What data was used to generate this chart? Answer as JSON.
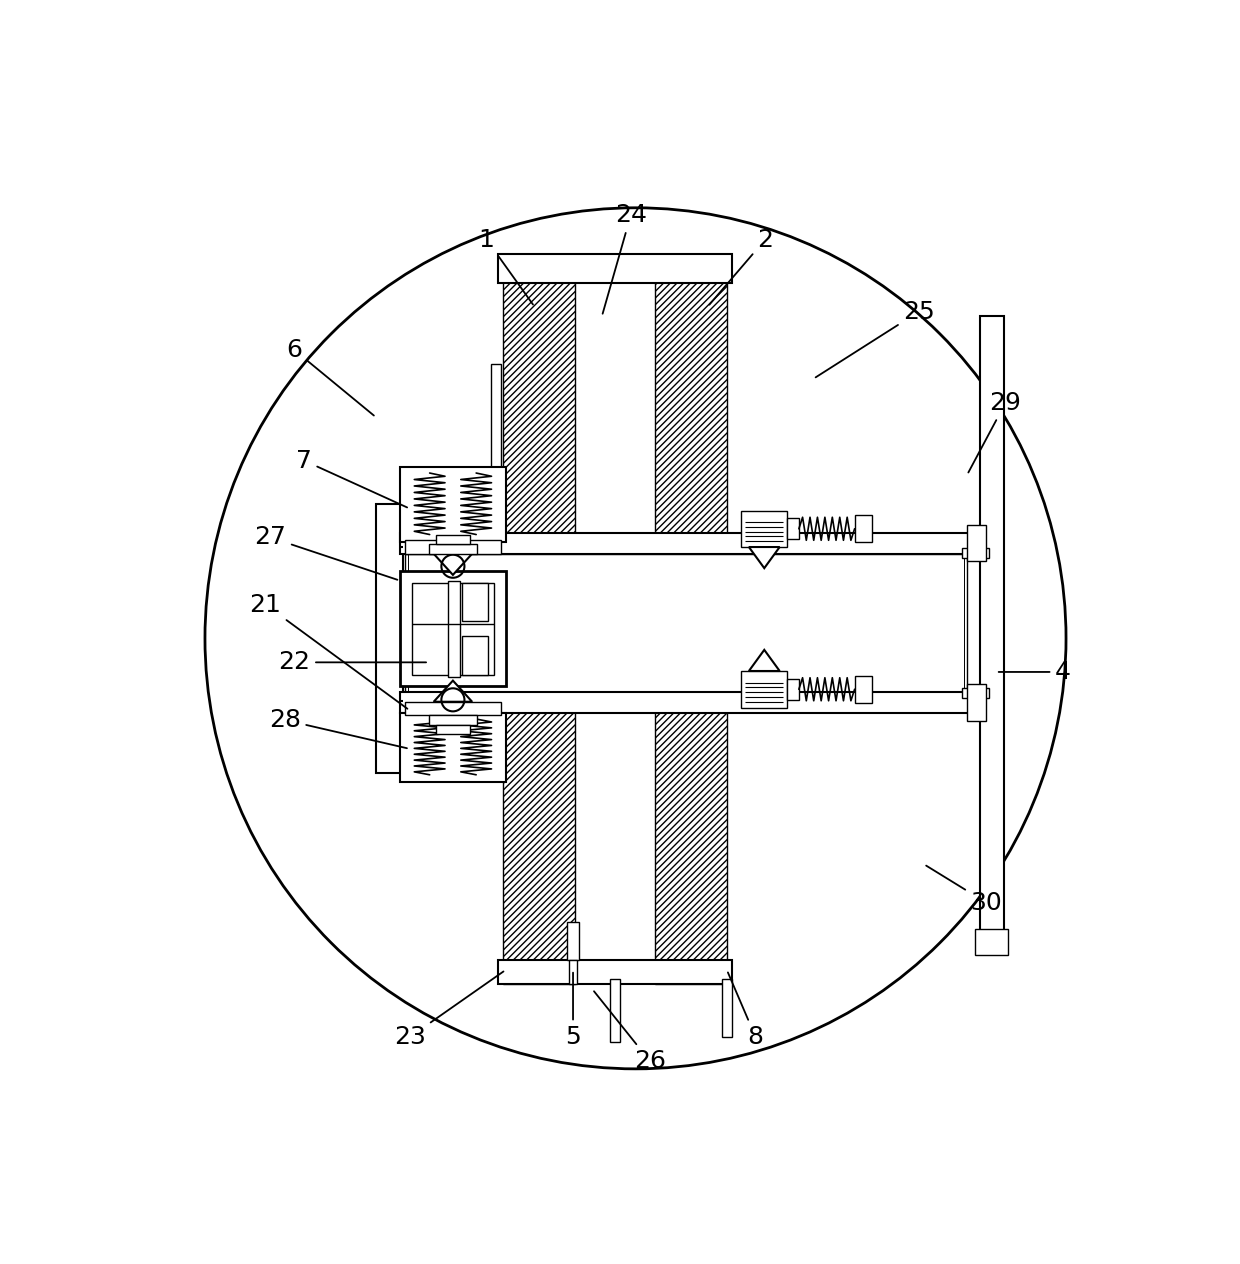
{
  "bg_color": "#ffffff",
  "lc": "#000000",
  "figsize": [
    12.4,
    12.64
  ],
  "dpi": 100,
  "labels": {
    "1": {
      "tp": [
        0.345,
        0.915
      ],
      "ap": [
        0.395,
        0.845
      ]
    },
    "2": {
      "tp": [
        0.635,
        0.915
      ],
      "ap": [
        0.575,
        0.845
      ]
    },
    "4": {
      "tp": [
        0.945,
        0.465
      ],
      "ap": [
        0.875,
        0.465
      ]
    },
    "5": {
      "tp": [
        0.435,
        0.085
      ],
      "ap": [
        0.435,
        0.155
      ]
    },
    "6": {
      "tp": [
        0.145,
        0.8
      ],
      "ap": [
        0.23,
        0.73
      ]
    },
    "7": {
      "tp": [
        0.155,
        0.685
      ],
      "ap": [
        0.265,
        0.635
      ]
    },
    "8": {
      "tp": [
        0.625,
        0.085
      ],
      "ap": [
        0.595,
        0.155
      ]
    },
    "21": {
      "tp": [
        0.115,
        0.535
      ],
      "ap": [
        0.265,
        0.425
      ]
    },
    "22": {
      "tp": [
        0.145,
        0.475
      ],
      "ap": [
        0.285,
        0.475
      ]
    },
    "23": {
      "tp": [
        0.265,
        0.085
      ],
      "ap": [
        0.365,
        0.155
      ]
    },
    "24": {
      "tp": [
        0.495,
        0.94
      ],
      "ap": [
        0.465,
        0.835
      ]
    },
    "25": {
      "tp": [
        0.795,
        0.84
      ],
      "ap": [
        0.685,
        0.77
      ]
    },
    "26": {
      "tp": [
        0.515,
        0.06
      ],
      "ap": [
        0.455,
        0.135
      ]
    },
    "27": {
      "tp": [
        0.12,
        0.605
      ],
      "ap": [
        0.255,
        0.56
      ]
    },
    "28": {
      "tp": [
        0.135,
        0.415
      ],
      "ap": [
        0.265,
        0.385
      ]
    },
    "29": {
      "tp": [
        0.885,
        0.745
      ],
      "ap": [
        0.845,
        0.67
      ]
    },
    "30": {
      "tp": [
        0.865,
        0.225
      ],
      "ap": [
        0.8,
        0.265
      ]
    }
  }
}
